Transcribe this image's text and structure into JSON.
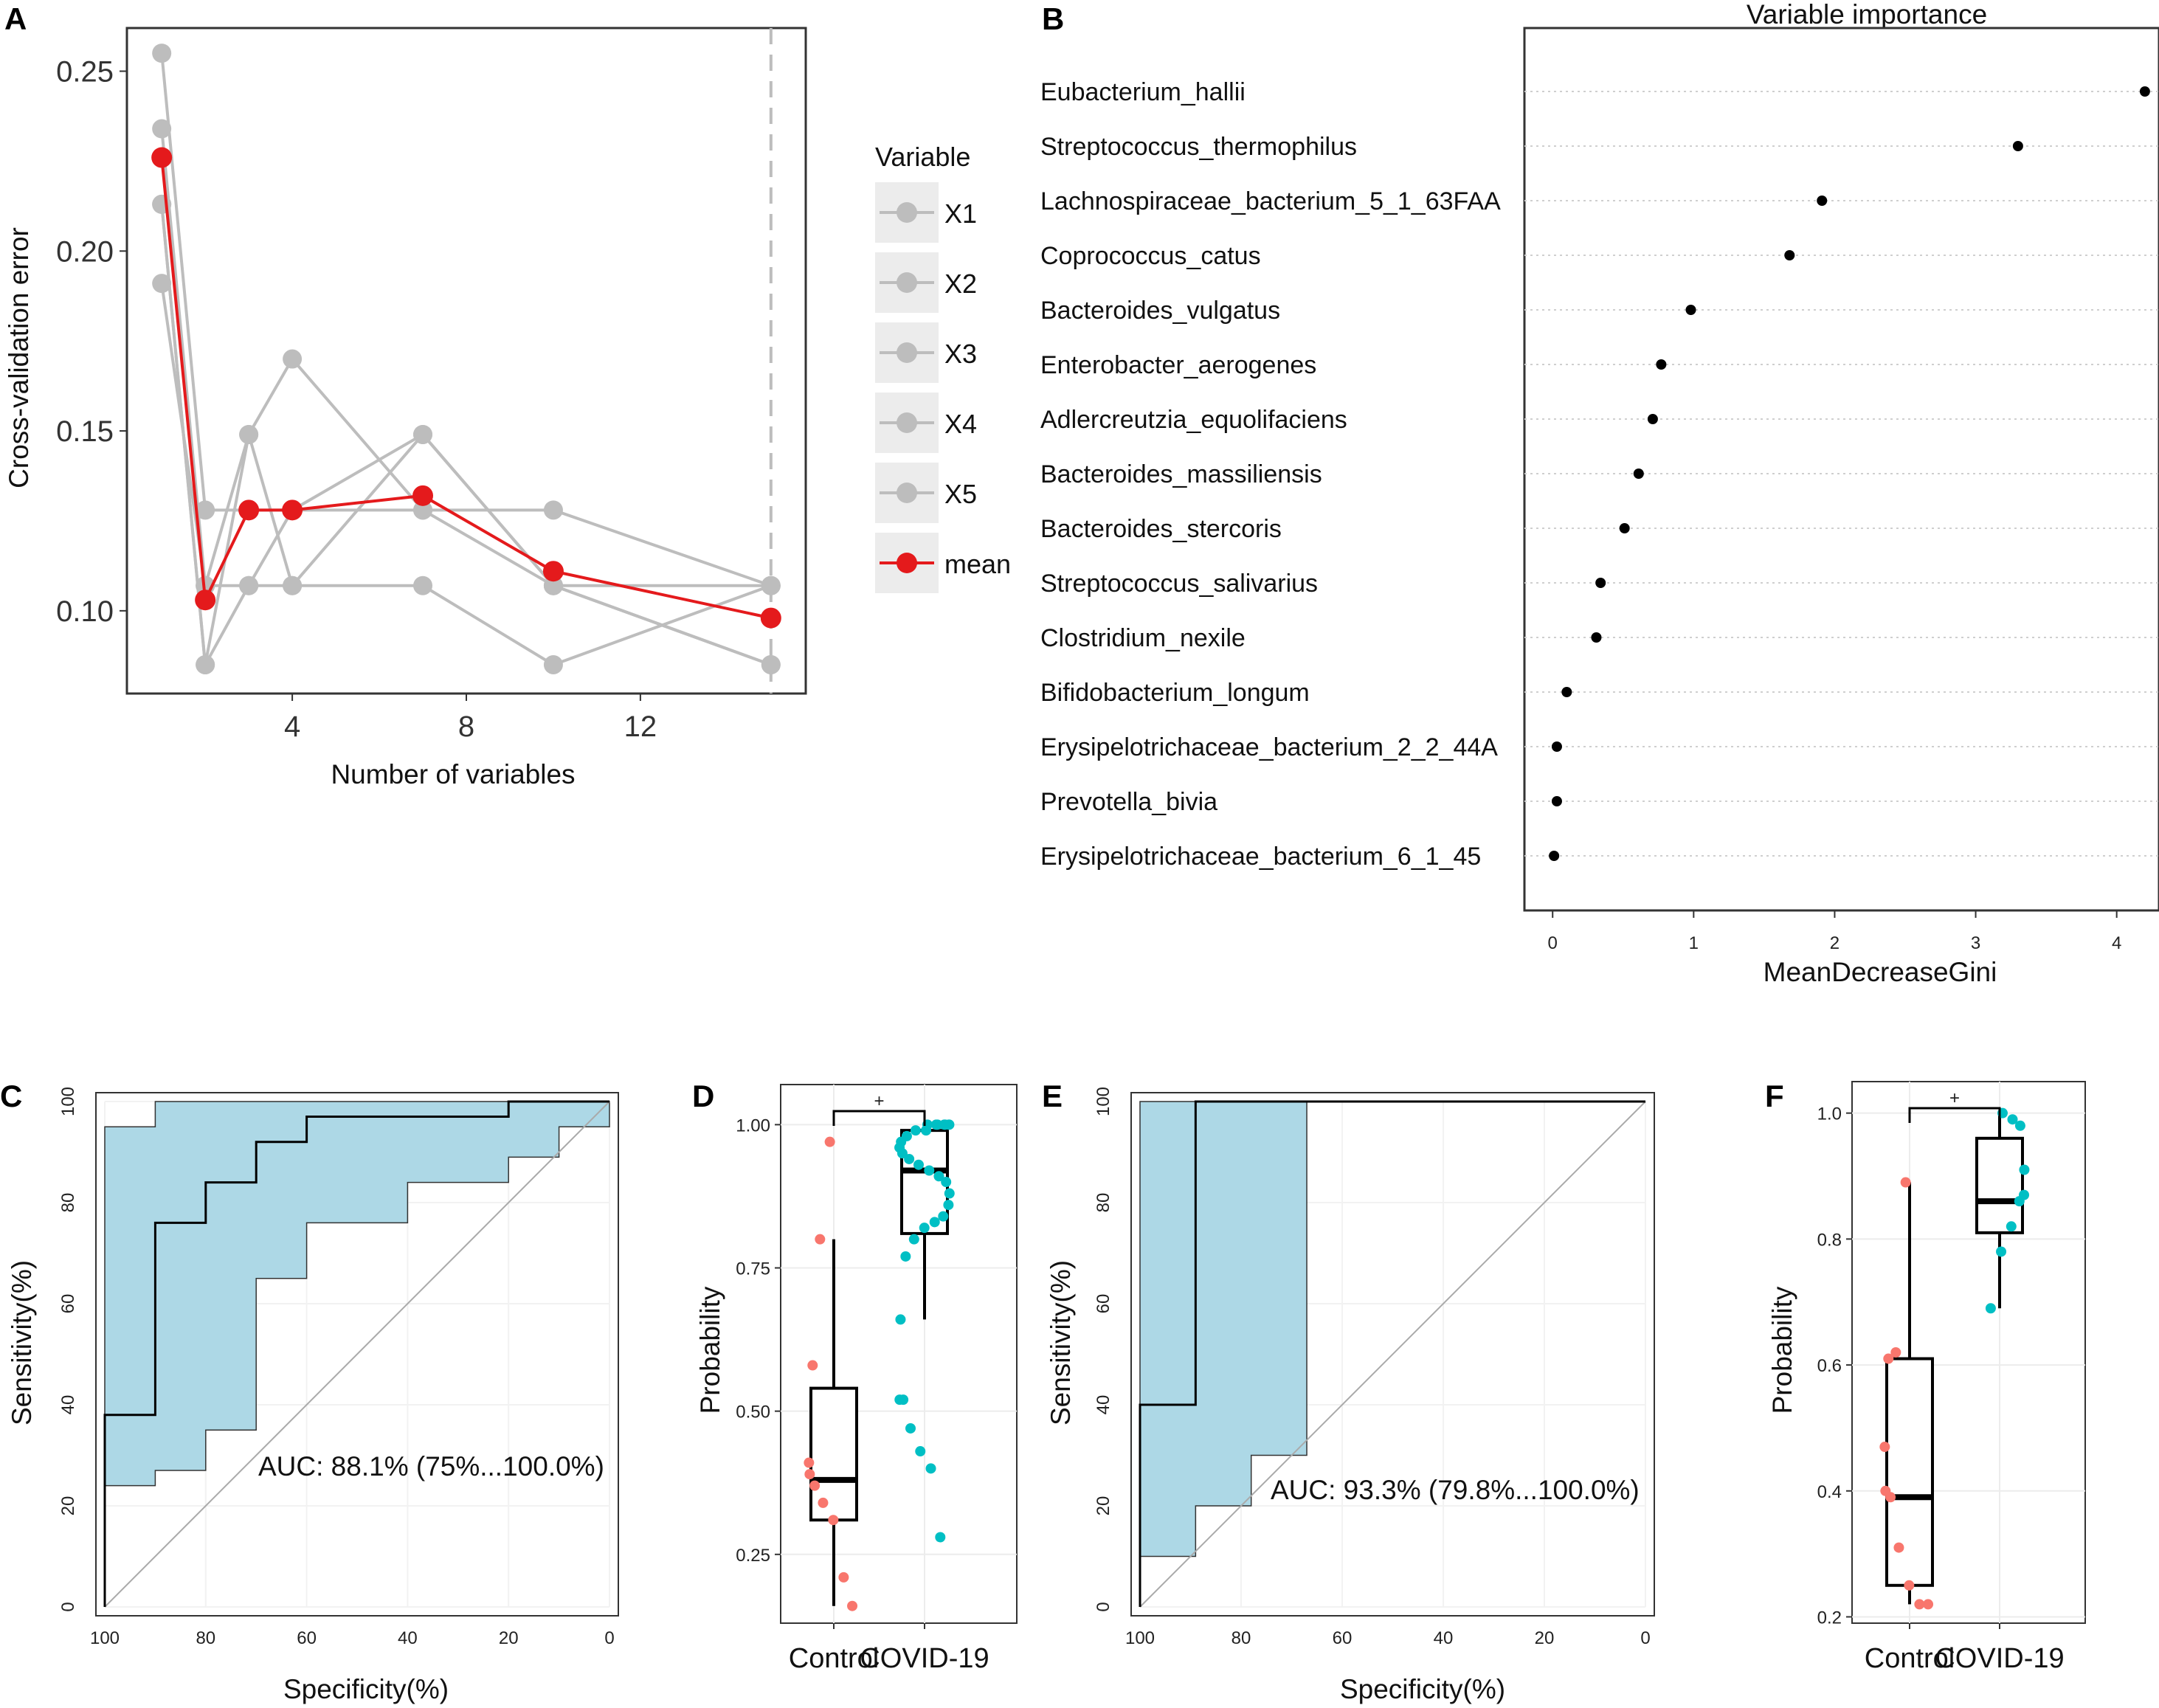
{
  "chart_data": [
    {
      "panel": "A",
      "type": "line",
      "xlabel": "Number of variables",
      "ylabel": "Cross-validation error",
      "xlim": [
        0.2,
        15.8
      ],
      "ylim": [
        0.077,
        0.262
      ],
      "xticks": [
        4,
        8,
        12
      ],
      "yticks": [
        0.1,
        0.15,
        0.2,
        0.25
      ],
      "ytick_labels": [
        "0.10",
        "0.15",
        "0.20",
        "0.25"
      ],
      "vline_x": 15,
      "x": [
        1,
        2,
        3,
        4,
        7,
        10,
        15
      ],
      "legend_title": "Variable",
      "series": [
        {
          "name": "X1",
          "color": "#bdbdbd",
          "values": [
            0.255,
            0.128,
            0.128,
            0.128,
            0.128,
            0.128,
            0.107
          ]
        },
        {
          "name": "X2",
          "color": "#bdbdbd",
          "values": [
            0.234,
            0.107,
            0.149,
            0.107,
            0.149,
            0.107,
            0.085
          ]
        },
        {
          "name": "X3",
          "color": "#bdbdbd",
          "values": [
            0.213,
            0.085,
            0.149,
            0.17,
            0.128,
            0.107,
            0.085
          ]
        },
        {
          "name": "X4",
          "color": "#bdbdbd",
          "values": [
            0.191,
            0.107,
            0.107,
            0.107,
            0.107,
            0.085,
            0.107
          ]
        },
        {
          "name": "X5",
          "color": "#bdbdbd",
          "values": [
            0.213,
            0.085,
            0.107,
            0.128,
            0.149,
            0.107,
            0.107
          ]
        },
        {
          "name": "mean",
          "color": "#e41a1c",
          "values": [
            0.226,
            0.103,
            0.128,
            0.128,
            0.132,
            0.111,
            0.098
          ]
        }
      ]
    },
    {
      "panel": "B",
      "type": "scatter",
      "title": "Variable importance",
      "xlabel": "MeanDecreaseGini",
      "xlim": [
        -0.2,
        4.3
      ],
      "xticks": [
        0,
        1,
        2,
        3,
        4
      ],
      "categories": [
        "Eubacterium_hallii",
        "Streptococcus_thermophilus",
        "Lachnospiraceae_bacterium_5_1_63FAA",
        "Coprococcus_catus",
        "Bacteroides_vulgatus",
        "Enterobacter_aerogenes",
        "Adlercreutzia_equolifaciens",
        "Bacteroides_massiliensis",
        "Bacteroides_stercoris",
        "Streptococcus_salivarius",
        "Clostridium_nexile",
        "Bifidobacterium_longum",
        "Erysipelotrichaceae_bacterium_2_2_44A",
        "Prevotella_bivia",
        "Erysipelotrichaceae_bacterium_6_1_45"
      ],
      "values": [
        4.2,
        3.3,
        1.91,
        1.68,
        0.98,
        0.77,
        0.71,
        0.61,
        0.51,
        0.34,
        0.31,
        0.1,
        0.03,
        0.03,
        0.01
      ]
    },
    {
      "panel": "C",
      "type": "line",
      "subtype": "roc",
      "xlabel": "Specificity(%)",
      "ylabel": "Sensitivity(%)",
      "xlim": [
        100,
        0
      ],
      "ylim": [
        0,
        100
      ],
      "ticks": [
        0,
        20,
        40,
        60,
        80,
        100
      ],
      "auc_label": "AUC: 88.1% (75%...100.0%)",
      "curve": {
        "spec": [
          100,
          100,
          90,
          90,
          80,
          80,
          70,
          70,
          60,
          60,
          20,
          20,
          0
        ],
        "sens": [
          0,
          38,
          38,
          76,
          76,
          84,
          84,
          92,
          92,
          97,
          97,
          100,
          100
        ]
      },
      "ci_upper": {
        "spec": [
          100,
          90,
          90,
          0
        ],
        "sens": [
          95,
          95,
          100,
          100
        ]
      },
      "ci_lower": {
        "spec": [
          100,
          90,
          90,
          80,
          80,
          70,
          70,
          60,
          60,
          40,
          40,
          20,
          20,
          10,
          10,
          0
        ],
        "sens": [
          24,
          24,
          27,
          27,
          35,
          35,
          65,
          65,
          76,
          76,
          84,
          84,
          89,
          89,
          95,
          95
        ]
      }
    },
    {
      "panel": "D",
      "type": "scatter",
      "subtype": "boxplot",
      "ylabel": "Probability",
      "ylim": [
        0.13,
        1.07
      ],
      "yticks": [
        0.25,
        0.5,
        0.75,
        1.0
      ],
      "ytick_labels": [
        "0.25",
        "0.50",
        "0.75",
        "1.00"
      ],
      "categories": [
        "Control",
        "COVID-19"
      ],
      "significance": "+",
      "groups": [
        {
          "name": "Control",
          "color": "#f8766d",
          "box": {
            "min": 0.16,
            "q1": 0.31,
            "median": 0.38,
            "q3": 0.54,
            "max": 0.8
          },
          "points": [
            0.97,
            0.8,
            0.58,
            0.41,
            0.39,
            0.37,
            0.34,
            0.31,
            0.21,
            0.16
          ]
        },
        {
          "name": "COVID-19",
          "color": "#00bfc4",
          "box": {
            "min": 0.66,
            "q1": 0.81,
            "median": 0.92,
            "q3": 0.99,
            "max": 1.0
          },
          "points": [
            1.0,
            1.0,
            1.0,
            1.0,
            1.0,
            1.0,
            1.0,
            0.99,
            0.99,
            0.98,
            0.97,
            0.96,
            0.95,
            0.94,
            0.93,
            0.92,
            0.91,
            0.9,
            0.88,
            0.86,
            0.84,
            0.83,
            0.82,
            0.8,
            0.77,
            0.66,
            0.52,
            0.52,
            0.47,
            0.43,
            0.4,
            0.28
          ]
        }
      ]
    },
    {
      "panel": "E",
      "type": "line",
      "subtype": "roc",
      "xlabel": "Specificity(%)",
      "ylabel": "Sensitivity(%)",
      "xlim": [
        100,
        0
      ],
      "ylim": [
        0,
        100
      ],
      "ticks": [
        0,
        20,
        40,
        60,
        80,
        100
      ],
      "auc_label": "AUC: 93.3% (79.8%...100.0%)",
      "curve": {
        "spec": [
          100,
          100,
          89,
          89,
          0
        ],
        "sens": [
          0,
          40,
          40,
          100,
          100
        ]
      },
      "ci_upper": {
        "spec": [
          100,
          0
        ],
        "sens": [
          100,
          100
        ]
      },
      "ci_lower": {
        "spec": [
          100,
          89,
          89,
          78,
          78,
          67,
          67
        ],
        "sens": [
          10,
          10,
          20,
          20,
          30,
          30,
          100
        ]
      }
    },
    {
      "panel": "F",
      "type": "scatter",
      "subtype": "boxplot",
      "ylabel": "Probability",
      "ylim": [
        0.19,
        1.05
      ],
      "yticks": [
        0.2,
        0.4,
        0.6,
        0.8,
        1.0
      ],
      "ytick_labels": [
        "0.2",
        "0.4",
        "0.6",
        "0.8",
        "1.0"
      ],
      "categories": [
        "Control",
        "COVID-19"
      ],
      "significance": "+",
      "groups": [
        {
          "name": "Control",
          "color": "#f8766d",
          "box": {
            "min": 0.22,
            "q1": 0.25,
            "median": 0.39,
            "q3": 0.61,
            "max": 0.89
          },
          "points": [
            0.89,
            0.62,
            0.61,
            0.47,
            0.4,
            0.39,
            0.31,
            0.25,
            0.22,
            0.22
          ]
        },
        {
          "name": "COVID-19",
          "color": "#00bfc4",
          "box": {
            "min": 0.69,
            "q1": 0.81,
            "median": 0.86,
            "q3": 0.96,
            "max": 1.0
          },
          "points": [
            1.0,
            0.99,
            0.98,
            0.91,
            0.87,
            0.86,
            0.82,
            0.78,
            0.69
          ]
        }
      ]
    }
  ]
}
